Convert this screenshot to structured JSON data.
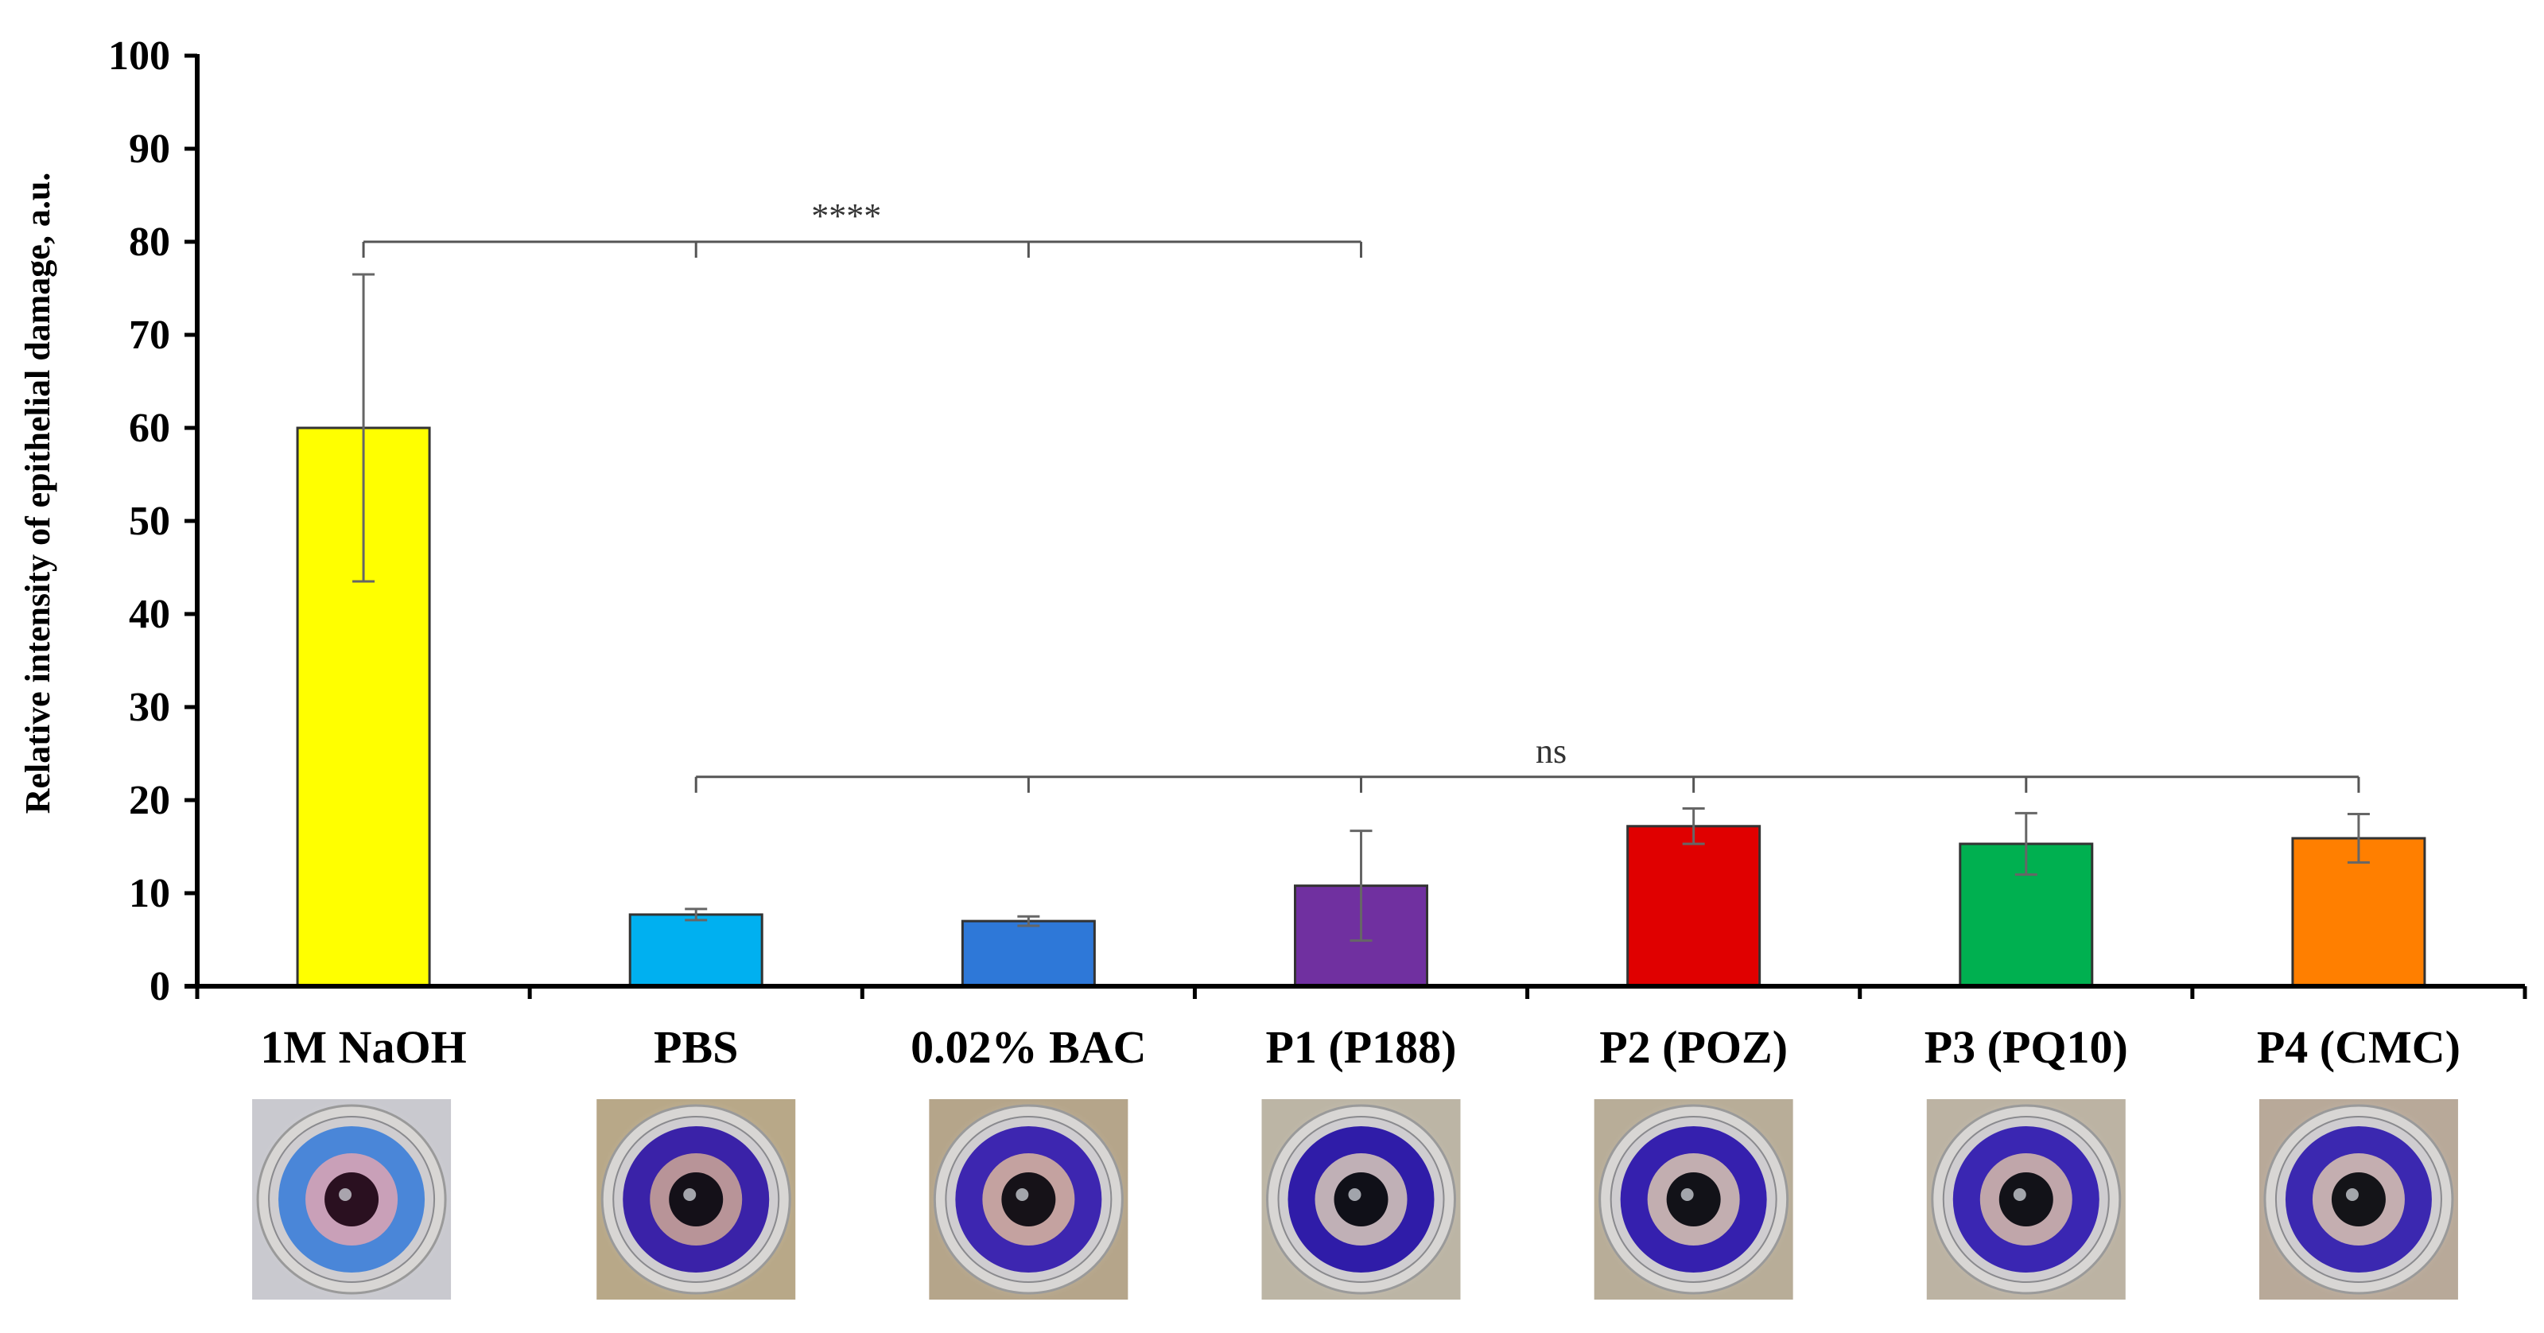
{
  "chart_data": {
    "type": "bar",
    "title": "",
    "xlabel": "",
    "ylabel": "Relative intensity of epithelial damage, a.u.",
    "ylim": [
      0,
      100
    ],
    "yticks": [
      0,
      10,
      20,
      30,
      40,
      50,
      60,
      70,
      80,
      90,
      100
    ],
    "grid": false,
    "categories": [
      "1M NaOH",
      "PBS",
      "0.02% BAC",
      "P1 (P188)",
      "P2 (POZ)",
      "P3 (PQ10)",
      "P4 (CMC)"
    ],
    "values": [
      60,
      7.7,
      7,
      10.8,
      17.2,
      15.3,
      15.9
    ],
    "errors": [
      16.5,
      0.6,
      0.5,
      5.9,
      1.9,
      3.3,
      2.6
    ],
    "colors": [
      "#FFFF00",
      "#00B0F0",
      "#2E78D8",
      "#7030A0",
      "#E00000",
      "#00B050",
      "#FF7F00"
    ],
    "annotations": [
      {
        "label": "****",
        "from": 0,
        "to": 3,
        "level": 80
      },
      {
        "label": "ns",
        "from": 1,
        "to": 6,
        "level": 22.5
      }
    ]
  },
  "eye_images": [
    {
      "category": "1M NaOH",
      "icon": "damaged-cornea-photo-icon",
      "ring": "#4a86d8",
      "iris": "#c9a0b8",
      "pupil": "#2a1020",
      "bg": "#c9c9cf"
    },
    {
      "category": "PBS",
      "icon": "cornea-photo-icon",
      "ring": "#3a22a8",
      "iris": "#b89498",
      "pupil": "#141018",
      "bg": "#b8a888"
    },
    {
      "category": "0.02% BAC",
      "icon": "cornea-photo-icon",
      "ring": "#3d26b0",
      "iris": "#c4a2a0",
      "pupil": "#161218",
      "bg": "#b5a58a"
    },
    {
      "category": "P1 (P188)",
      "icon": "cornea-photo-icon",
      "ring": "#2f1ca8",
      "iris": "#c0b0b6",
      "pupil": "#101018",
      "bg": "#bcb5a5"
    },
    {
      "category": "P2 (POZ)",
      "icon": "cornea-photo-icon",
      "ring": "#3520ae",
      "iris": "#c2aeb0",
      "pupil": "#121218",
      "bg": "#b8ad98"
    },
    {
      "category": "P3 (PQ10)",
      "icon": "cornea-photo-icon",
      "ring": "#3a26b2",
      "iris": "#c0a6aa",
      "pupil": "#121218",
      "bg": "#bcb3a3"
    },
    {
      "category": "P4 (CMC)",
      "icon": "cornea-photo-icon",
      "ring": "#3b28b0",
      "iris": "#c4aeb0",
      "pupil": "#141418",
      "bg": "#b8a999"
    }
  ]
}
